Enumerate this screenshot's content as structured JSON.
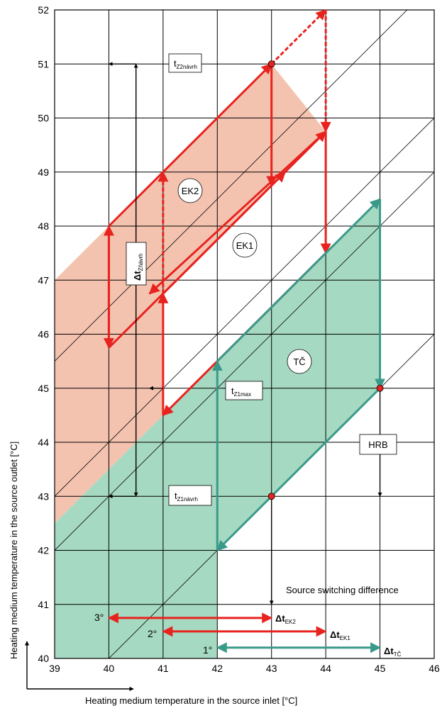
{
  "axes": {
    "x_title": "Heating medium temperature in the source inlet  [°C]",
    "y_title": "Heating medium temperature in the source outlet  [°C]",
    "x_ticks": [
      "39",
      "40",
      "41",
      "42",
      "43",
      "44",
      "45",
      "46"
    ],
    "y_ticks": [
      "40",
      "41",
      "42",
      "43",
      "44",
      "45",
      "46",
      "47",
      "48",
      "49",
      "50",
      "51",
      "52"
    ],
    "xlim": [
      39,
      46
    ],
    "ylim": [
      40,
      52
    ]
  },
  "colors": {
    "red": "#e8231f",
    "red_fill": "#f4c3b0",
    "teal": "#3a9a8a",
    "teal_fill": "#a6d9c1"
  },
  "labels": {
    "t_z2": {
      "main": "t",
      "sub": "Z2návrh"
    },
    "t_z1max": {
      "main": "t",
      "sub": "Z1max"
    },
    "t_z1": {
      "main": "t",
      "sub": "Z1návrh"
    },
    "dt_z": {
      "main": "Δt",
      "sub": "Zňávrh"
    },
    "ek2": "EK2",
    "ek1": "EK1",
    "tc": "TČ",
    "hrb": "HRB",
    "switching": "Source switching difference",
    "deg3": "3°",
    "deg2": "2°",
    "deg1": "1°",
    "dt_ek2": {
      "main": "Δt",
      "sub": "EK2"
    },
    "dt_ek1": {
      "main": "Δt",
      "sub": "EK1"
    },
    "dt_tc": {
      "main": "Δt",
      "sub": "TČ"
    }
  },
  "chart_data": {
    "type": "diagram",
    "regions": [
      {
        "name": "EK",
        "color": "red_fill",
        "points": [
          [
            39,
            47
          ],
          [
            43,
            51
          ],
          [
            44,
            49.75
          ],
          [
            41,
            46.75
          ],
          [
            41,
            44.5
          ],
          [
            39,
            42.5
          ]
        ]
      },
      {
        "name": "TČ",
        "color": "teal_fill",
        "points": [
          [
            39,
            42.5
          ],
          [
            41,
            44.5
          ],
          [
            42,
            45.5
          ],
          [
            45,
            48.5
          ],
          [
            45,
            45
          ],
          [
            42,
            42
          ],
          [
            42,
            40
          ],
          [
            39,
            40
          ]
        ]
      }
    ],
    "reference_diagonals": [
      0,
      3,
      4,
      6.5
    ],
    "red_arrows": [
      [
        [
          40,
          48
        ],
        [
          43,
          51
        ]
      ],
      [
        [
          43,
          51
        ],
        [
          43,
          48.75
        ]
      ],
      [
        [
          44,
          49.75
        ],
        [
          40.75,
          46.75
        ]
      ],
      [
        [
          44,
          49.75
        ],
        [
          44,
          47.5
        ]
      ],
      [
        [
          40,
          48
        ],
        [
          40,
          45.75
        ]
      ],
      [
        [
          40,
          45.75
        ],
        [
          43.25,
          49
        ]
      ],
      [
        [
          41,
          44.5
        ],
        [
          41,
          46.75
        ]
      ],
      [
        [
          41,
          46.75
        ],
        [
          44,
          49.75
        ]
      ],
      [
        [
          44,
          47.5
        ],
        [
          41,
          44.5
        ]
      ],
      [
        [
          40,
          45.75
        ],
        [
          40,
          48
        ]
      ]
    ],
    "red_dashed_arrows": [
      [
        [
          43,
          51
        ],
        [
          44,
          52
        ]
      ],
      [
        [
          44,
          52
        ],
        [
          44,
          49.75
        ]
      ],
      [
        [
          41,
          46.75
        ],
        [
          41,
          49
        ]
      ]
    ],
    "teal_arrows": [
      [
        [
          42,
          45.5
        ],
        [
          45,
          48.5
        ]
      ],
      [
        [
          45,
          48.5
        ],
        [
          45,
          45
        ]
      ],
      [
        [
          45,
          45
        ],
        [
          42,
          42
        ]
      ],
      [
        [
          42,
          42
        ],
        [
          42,
          45.5
        ]
      ]
    ],
    "black_arrows": [
      [
        [
          40.5,
          51
        ],
        [
          40,
          51
        ]
      ],
      [
        [
          40.5,
          51
        ],
        [
          40.5,
          43
        ]
      ],
      [
        [
          40.5,
          43
        ],
        [
          40.5,
          51
        ]
      ],
      [
        [
          40.5,
          43
        ],
        [
          40,
          43
        ]
      ],
      [
        [
          41,
          45
        ],
        [
          40.75,
          45
        ]
      ],
      [
        [
          43,
          43
        ],
        [
          43,
          41
        ]
      ],
      [
        [
          45,
          45
        ],
        [
          45,
          43
        ]
      ]
    ],
    "points": [
      [
        43,
        51
      ],
      [
        45,
        45
      ],
      [
        43,
        43
      ]
    ],
    "horizontal_deltas": [
      {
        "y": 40.75,
        "from": 40,
        "to": 43,
        "label": "3°",
        "color": "red"
      },
      {
        "y": 40.5,
        "from": 41,
        "to": 44,
        "label": "2°",
        "color": "red"
      },
      {
        "y": 40.2,
        "from": 42,
        "to": 45,
        "label": "1°",
        "color": "teal"
      }
    ]
  }
}
